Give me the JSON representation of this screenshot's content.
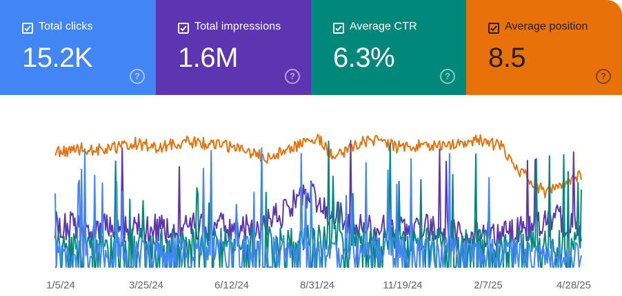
{
  "metrics": [
    {
      "label": "Total clicks",
      "value": "15.2K",
      "checked": true,
      "color": "#4285f4",
      "text_color": "#ffffff",
      "icon": "help-icon"
    },
    {
      "label": "Total impressions",
      "value": "1.6M",
      "checked": true,
      "color": "#5e35b1",
      "text_color": "#ffffff",
      "icon": "help-icon"
    },
    {
      "label": "Average CTR",
      "value": "6.3%",
      "checked": true,
      "color": "#00897b",
      "text_color": "#ffffff",
      "icon": "help-icon"
    },
    {
      "label": "Average position",
      "value": "8.5",
      "checked": true,
      "color": "#e8710a",
      "text_color": "#202124",
      "icon": "help-icon"
    }
  ],
  "chart_data": {
    "type": "line",
    "title": "",
    "x_start": "2024-01-05",
    "x_end": "2025-05-04",
    "x_ticks": [
      "1/5/24",
      "3/25/24",
      "6/12/24",
      "8/31/24",
      "11/19/24",
      "2/7/25",
      "4/28/25"
    ],
    "grid": false,
    "legend": "none",
    "series": [
      {
        "name": "Average position",
        "color": "#e8710a",
        "axis": "independent",
        "profile": [
          [
            0.0,
            0.16
          ],
          [
            0.05,
            0.13
          ],
          [
            0.1,
            0.14
          ],
          [
            0.15,
            0.09
          ],
          [
            0.2,
            0.12
          ],
          [
            0.25,
            0.08
          ],
          [
            0.3,
            0.1
          ],
          [
            0.35,
            0.12
          ],
          [
            0.4,
            0.2
          ],
          [
            0.45,
            0.12
          ],
          [
            0.5,
            0.06
          ],
          [
            0.53,
            0.2
          ],
          [
            0.56,
            0.12
          ],
          [
            0.6,
            0.06
          ],
          [
            0.65,
            0.12
          ],
          [
            0.7,
            0.11
          ],
          [
            0.75,
            0.1
          ],
          [
            0.8,
            0.06
          ],
          [
            0.85,
            0.12
          ],
          [
            0.88,
            0.28
          ],
          [
            0.9,
            0.35
          ],
          [
            0.93,
            0.45
          ],
          [
            0.96,
            0.42
          ],
          [
            0.98,
            0.38
          ],
          [
            1.0,
            0.32
          ]
        ]
      },
      {
        "name": "Total impressions",
        "color": "#5e35b1",
        "axis": "independent",
        "profile": [
          [
            0.0,
            0.7
          ],
          [
            0.2,
            0.72
          ],
          [
            0.4,
            0.7
          ],
          [
            0.48,
            0.45
          ],
          [
            0.52,
            0.6
          ],
          [
            0.6,
            0.72
          ],
          [
            0.7,
            0.72
          ],
          [
            0.8,
            0.75
          ],
          [
            0.9,
            0.72
          ],
          [
            0.95,
            0.65
          ],
          [
            1.0,
            0.7
          ]
        ]
      },
      {
        "name": "Average CTR",
        "color": "#00897b",
        "axis": "independent",
        "profile": [
          [
            0.0,
            0.8
          ],
          [
            0.3,
            0.8
          ],
          [
            0.5,
            0.78
          ],
          [
            0.7,
            0.8
          ],
          [
            1.0,
            0.82
          ]
        ]
      },
      {
        "name": "Total clicks",
        "color": "#4285f4",
        "axis": "independent",
        "profile": [
          [
            0.0,
            0.88
          ],
          [
            0.3,
            0.86
          ],
          [
            0.5,
            0.85
          ],
          [
            0.7,
            0.87
          ],
          [
            1.0,
            0.9
          ]
        ]
      }
    ]
  }
}
